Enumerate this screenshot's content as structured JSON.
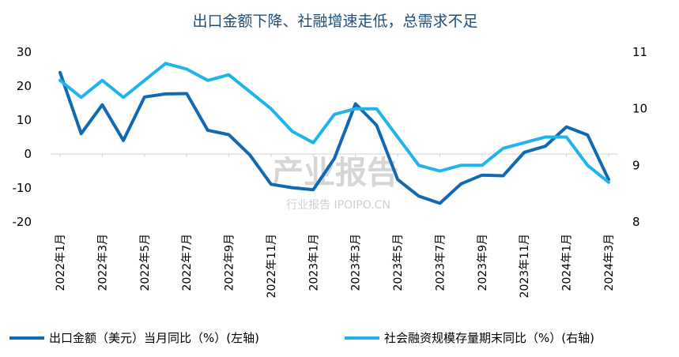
{
  "chart_data": {
    "type": "line",
    "title": "出口金额下降、社融增速走低，总需求不足",
    "categories": [
      "2022年1月",
      "2022年2月",
      "2022年3月",
      "2022年4月",
      "2022年5月",
      "2022年6月",
      "2022年7月",
      "2022年8月",
      "2022年9月",
      "2022年10月",
      "2022年11月",
      "2022年12月",
      "2023年1月",
      "2023年2月",
      "2023年3月",
      "2023年4月",
      "2023年5月",
      "2023年6月",
      "2023年7月",
      "2023年8月",
      "2023年9月",
      "2023年10月",
      "2023年11月",
      "2023年12月",
      "2024年1月",
      "2024年2月",
      "2024年3月"
    ],
    "xtick_labels": [
      "2022年1月",
      "2022年3月",
      "2022年5月",
      "2022年7月",
      "2022年9月",
      "2022年11月",
      "2023年1月",
      "2023年3月",
      "2023年5月",
      "2023年7月",
      "2023年9月",
      "2023年11月",
      "2024年1月",
      "2024年3月"
    ],
    "y_left": {
      "lim": [
        -20,
        30
      ],
      "ticks": [
        "30",
        "20",
        "10",
        "0",
        "-10",
        "-20"
      ]
    },
    "y_right": {
      "lim": [
        8,
        11
      ],
      "ticks": [
        "11",
        "10",
        "9",
        "8"
      ]
    },
    "series": [
      {
        "name": "出口金额（美元）当月同比（%）(左轴)",
        "axis": "left",
        "color": "#1069b2",
        "values": [
          24.0,
          6.0,
          14.5,
          4.0,
          16.8,
          17.7,
          17.8,
          7.0,
          5.7,
          -0.3,
          -8.9,
          -9.9,
          -10.5,
          -1.3,
          14.8,
          8.5,
          -7.5,
          -12.4,
          -14.5,
          -8.8,
          -6.2,
          -6.4,
          0.5,
          2.3,
          8.0,
          5.6,
          -7.5
        ]
      },
      {
        "name": "社会融资规模存量期末同比（%）(右轴)",
        "axis": "right",
        "color": "#1fb4ec",
        "values": [
          10.5,
          10.2,
          10.5,
          10.2,
          10.5,
          10.8,
          10.7,
          10.5,
          10.6,
          10.3,
          10.0,
          9.6,
          9.4,
          9.9,
          10.0,
          10.0,
          9.5,
          9.0,
          8.9,
          9.0,
          9.0,
          9.3,
          9.4,
          9.5,
          9.5,
          9.0,
          8.7
        ]
      }
    ],
    "grid": false,
    "legend_position": "bottom"
  },
  "watermark": {
    "main": "产业报告",
    "sub": "行业报告 IPOIPO.CN"
  }
}
